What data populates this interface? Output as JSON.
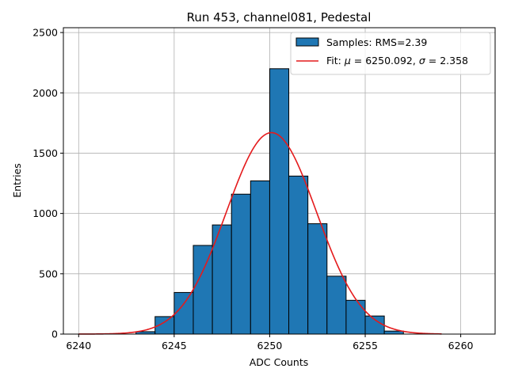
{
  "chart_data": {
    "type": "bar",
    "title": "Run 453, channel081, Pedestal",
    "xlabel": "ADC Counts",
    "ylabel": "Entries",
    "xlim": [
      6239.2,
      6261.8
    ],
    "ylim": [
      0,
      2540
    ],
    "xticks": [
      6240,
      6245,
      6250,
      6255,
      6260
    ],
    "yticks": [
      0,
      500,
      1000,
      1500,
      2000,
      2500
    ],
    "grid": true,
    "legend_position": "top-right",
    "histogram": {
      "name": "Samples: RMS=2.39",
      "color": "#1f77b4",
      "bins": [
        {
          "left": 6243,
          "right": 6244,
          "value": 20
        },
        {
          "left": 6244,
          "right": 6245,
          "value": 145
        },
        {
          "left": 6245,
          "right": 6246,
          "value": 345
        },
        {
          "left": 6246,
          "right": 6247,
          "value": 735
        },
        {
          "left": 6247,
          "right": 6248,
          "value": 905
        },
        {
          "left": 6248,
          "right": 6249,
          "value": 1160
        },
        {
          "left": 6249,
          "right": 6250,
          "value": 1270
        },
        {
          "left": 6250,
          "right": 6251,
          "value": 2200
        },
        {
          "left": 6251,
          "right": 6252,
          "value": 1310
        },
        {
          "left": 6252,
          "right": 6253,
          "value": 915
        },
        {
          "left": 6253,
          "right": 6254,
          "value": 480
        },
        {
          "left": 6254,
          "right": 6255,
          "value": 280
        },
        {
          "left": 6255,
          "right": 6256,
          "value": 150
        },
        {
          "left": 6256,
          "right": 6257,
          "value": 25
        }
      ]
    },
    "fit": {
      "label_prefix": "Fit: ",
      "mu_symbol": "μ",
      "sigma_symbol": "σ",
      "mu": "6250.092",
      "sigma": "2.358",
      "amplitude": 1670,
      "x_range": [
        6240,
        6259
      ],
      "color": "#e41a1c"
    }
  }
}
